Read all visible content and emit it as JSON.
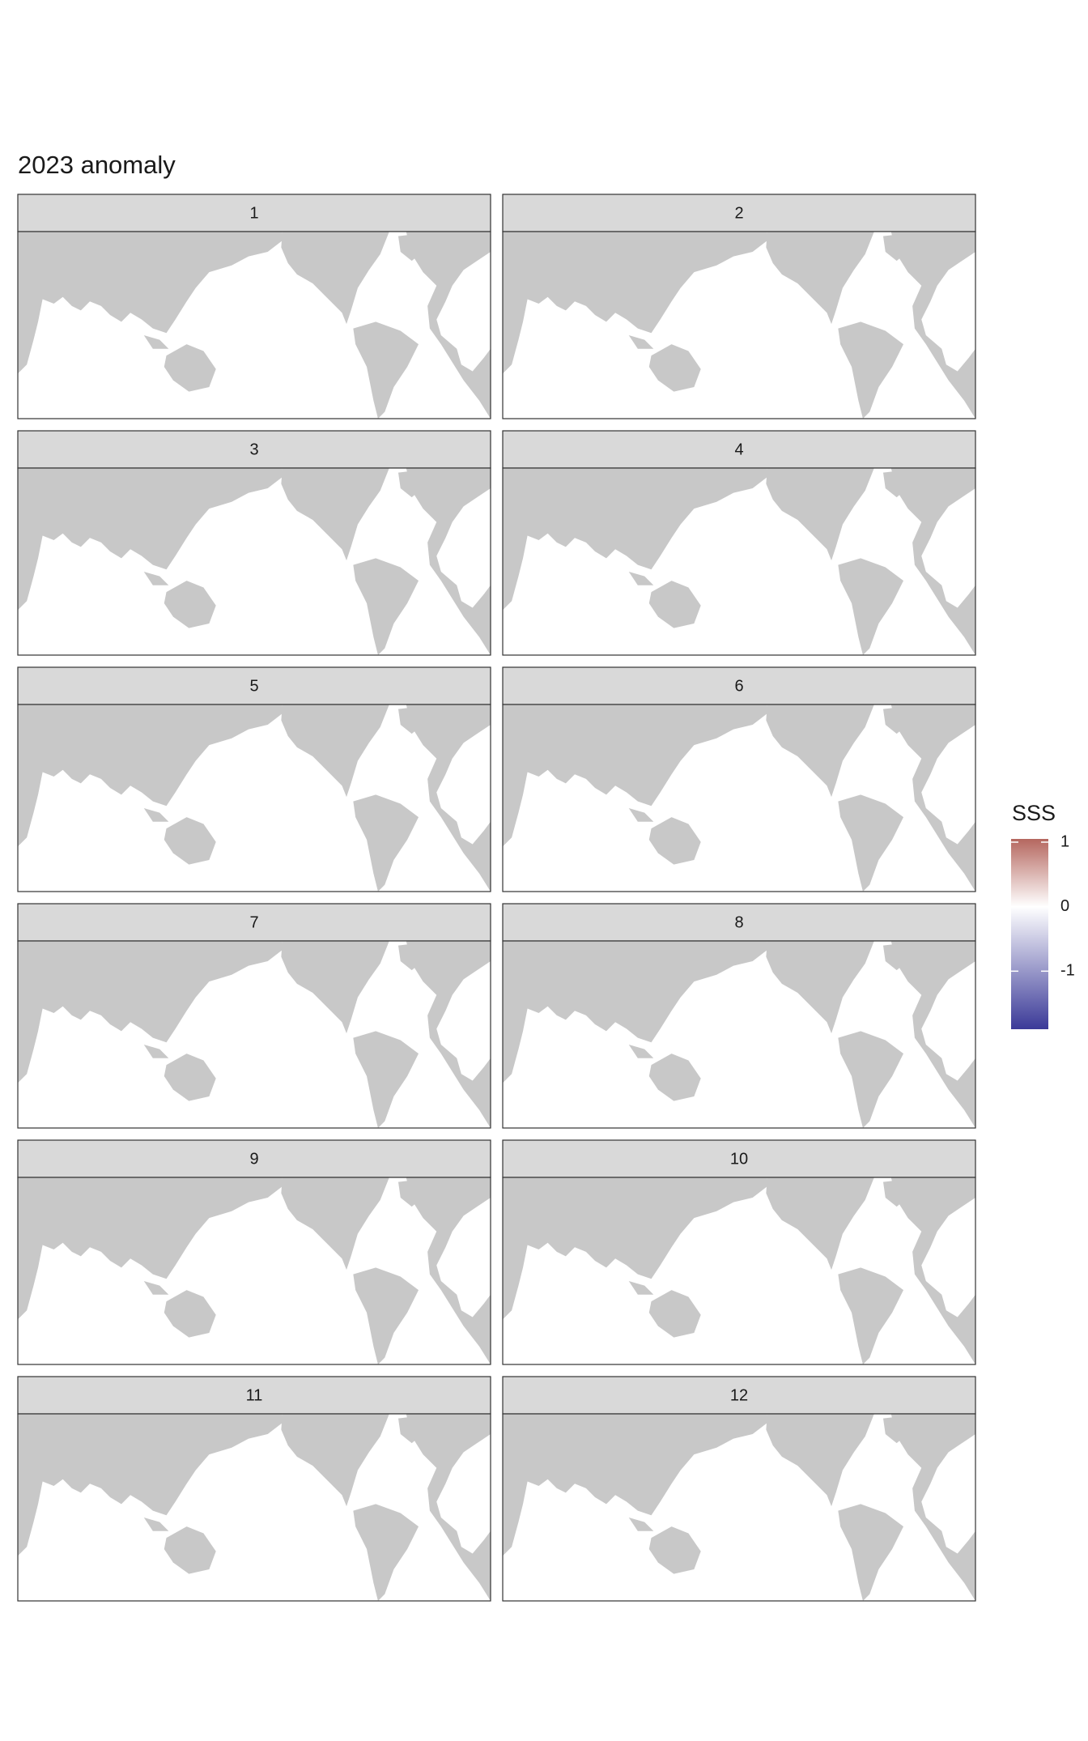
{
  "title": "2023 anomaly",
  "panels": [
    "1",
    "2",
    "3",
    "4",
    "5",
    "6",
    "7",
    "8",
    "9",
    "10",
    "11",
    "12"
  ],
  "legend": {
    "title": "SSS",
    "lim": [
      -1.9,
      1.05
    ],
    "ticks": [
      1,
      0,
      -1
    ],
    "colors": {
      "low": "#3b3a98",
      "mid": "#ffffff",
      "high": "#b5675f"
    }
  }
}
